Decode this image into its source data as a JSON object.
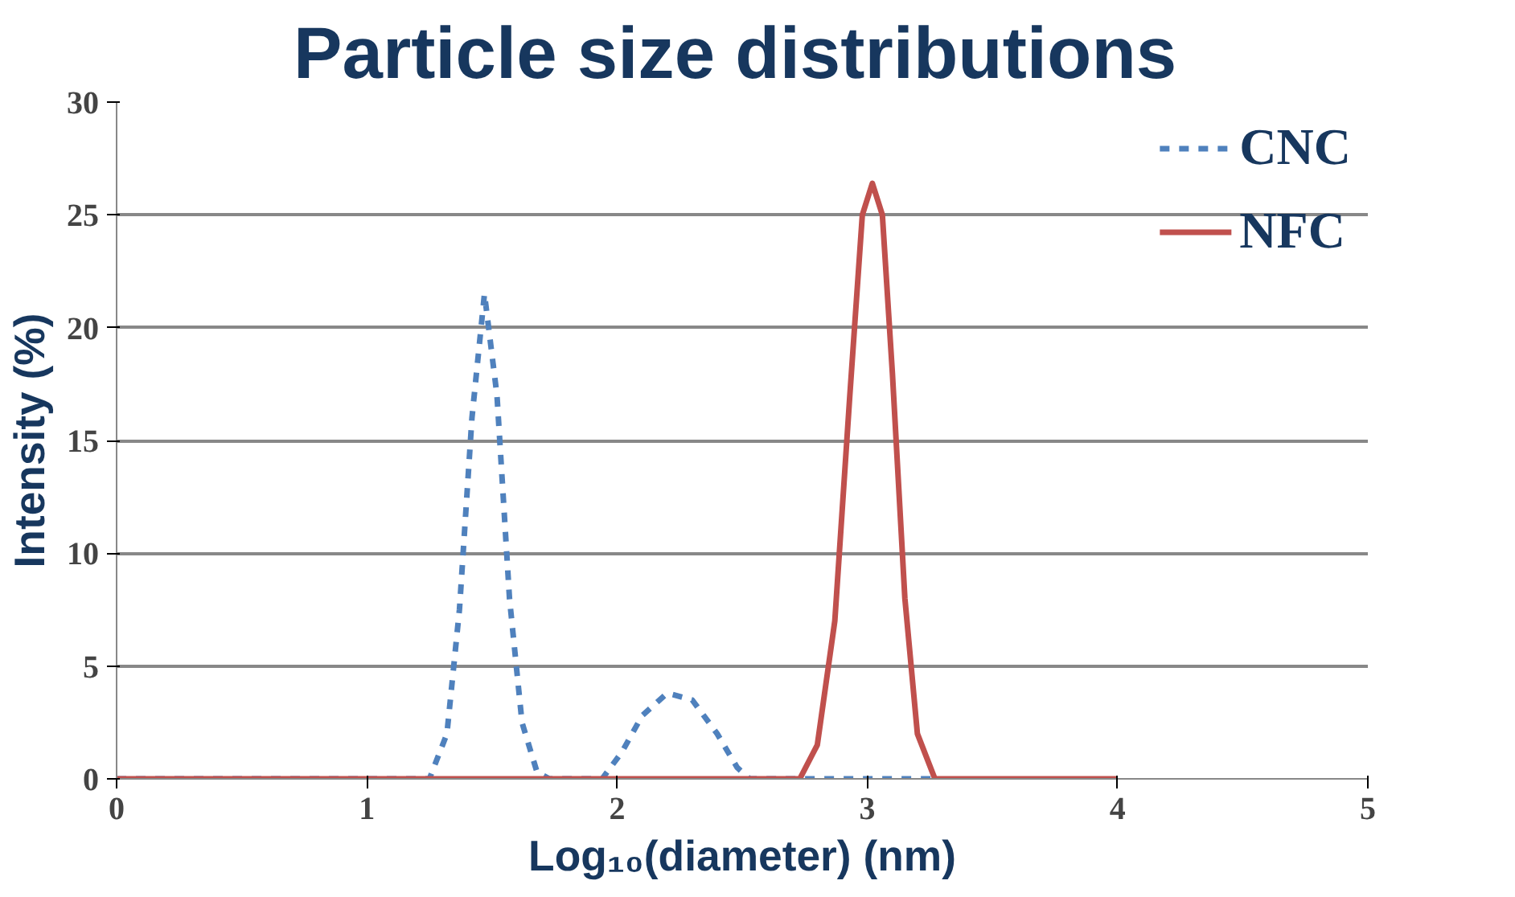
{
  "chart_data": {
    "type": "line",
    "title": "Particle size distributions",
    "xlabel": "Log₁₀(diameter) (nm)",
    "ylabel": "Intensity (%)",
    "xlim": [
      0,
      5
    ],
    "ylim": [
      0,
      30
    ],
    "xticks": [
      0,
      1,
      2,
      3,
      4,
      5
    ],
    "yticks": [
      0,
      5,
      10,
      15,
      20,
      25,
      30
    ],
    "grid": "y",
    "legend": "top right",
    "marker": "none",
    "series": [
      {
        "name": "CNC",
        "color": "#4f81bd",
        "line_style": "dashed",
        "x": [
          0,
          1.25,
          1.32,
          1.37,
          1.42,
          1.47,
          1.52,
          1.57,
          1.62,
          1.68,
          1.73,
          1.94,
          2.02,
          2.1,
          2.2,
          2.3,
          2.4,
          2.48,
          2.53,
          3.27
        ],
        "values": [
          0,
          0,
          2,
          7.5,
          16,
          21.5,
          17,
          8,
          2.5,
          0.3,
          0,
          0,
          1.2,
          2.8,
          3.8,
          3.5,
          2,
          0.5,
          0,
          0
        ]
      },
      {
        "name": "NFC",
        "color": "#c0504d",
        "line_style": "solid",
        "x": [
          0,
          2.73,
          2.8,
          2.87,
          2.93,
          2.98,
          3.02,
          3.06,
          3.1,
          3.15,
          3.2,
          3.27,
          4
        ],
        "values": [
          0,
          0,
          1.5,
          7,
          17,
          25,
          26.4,
          25,
          18,
          8,
          2,
          0,
          0
        ]
      }
    ]
  }
}
